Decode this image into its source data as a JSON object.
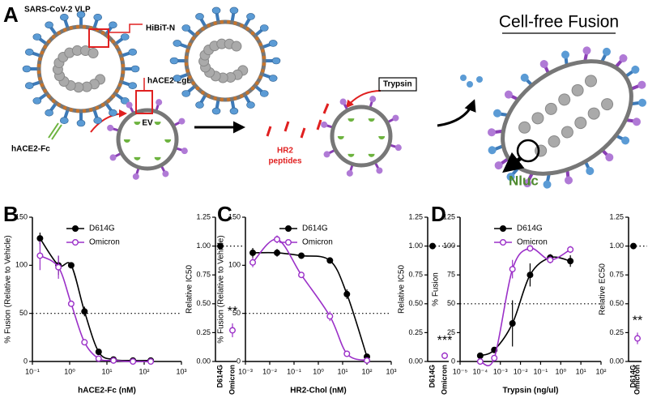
{
  "panel_labels": [
    "A",
    "B",
    "C",
    "D"
  ],
  "schematic": {
    "vlp_label": "SARS-CoV-2 VLP",
    "hibit": "HiBiT-N",
    "lgbit": "hACE2-LgBiT",
    "ev": "EV",
    "fc": "hACE2-Fc",
    "trypsin": "Trypsin",
    "hr2": [
      "HR2",
      "peptides"
    ],
    "title": "Cell-free Fusion",
    "nluc": "Nluc"
  },
  "chart_data": [
    {
      "type": "line",
      "x_label": "hACE2-Fc (nM)",
      "y_label": "% Fusion (Relative to Vehicle)",
      "xscale": "log",
      "xlim": [
        0.1,
        1000
      ],
      "xticks": [
        {
          "value": 0.1,
          "label": "10⁻¹"
        },
        {
          "value": 1,
          "label": "10⁰"
        },
        {
          "value": 10,
          "label": "10¹"
        },
        {
          "value": 100,
          "label": "10²"
        },
        {
          "value": 1000,
          "label": "10³"
        }
      ],
      "ylim": [
        0,
        150
      ],
      "yticks": [
        0,
        50,
        100,
        150
      ],
      "hline": 50,
      "x": [
        0.16,
        0.5,
        1.1,
        2.5,
        6,
        15,
        50,
        150
      ],
      "series": [
        {
          "name": "D614G",
          "color": "#000000",
          "values": [
            128,
            100,
            100,
            52,
            10,
            2,
            1,
            1
          ],
          "errors": [
            6,
            10,
            3,
            5,
            2,
            1,
            0,
            0
          ]
        },
        {
          "name": "Omicron",
          "color": "#9b30c8",
          "values": [
            110,
            98,
            60,
            20,
            3,
            1,
            0,
            0
          ],
          "errors": [
            15,
            12,
            3,
            2,
            1,
            0,
            0,
            0
          ]
        }
      ]
    },
    {
      "type": "dot",
      "y_label": "Relative IC50",
      "categories": [
        "D614G",
        "Omicron"
      ],
      "values": [
        1.0,
        0.27
      ],
      "errors": [
        0,
        0.06
      ],
      "colors": [
        "#000000",
        "#9b30c8"
      ],
      "ylim": [
        0,
        1.25
      ],
      "yticks": [
        {
          "value": 0,
          "label": "0.00"
        },
        0.25,
        {
          "value": 0.5,
          "label": "0.50"
        },
        0.75,
        {
          "value": 1,
          "label": "1.00"
        },
        1.25
      ],
      "hline": 1,
      "annotation": "**"
    },
    {
      "type": "line",
      "x_label": "HR2-Chol (nM)",
      "y_label": "% Fusion (Relative to Vehicle)",
      "xscale": "log",
      "xlim": [
        0.001,
        1000
      ],
      "xticks": [
        {
          "value": 0.001,
          "label": "10⁻³"
        },
        {
          "value": 0.01,
          "label": "10⁻²"
        },
        {
          "value": 0.1,
          "label": "10⁻¹"
        },
        {
          "value": 1,
          "label": "10⁰"
        },
        {
          "value": 10,
          "label": "10¹"
        },
        {
          "value": 100,
          "label": "10²"
        },
        {
          "value": 1000,
          "label": "10³"
        }
      ],
      "ylim": [
        0,
        150
      ],
      "yticks": [
        0,
        50,
        100,
        150
      ],
      "hline": 50,
      "x": [
        0.002,
        0.02,
        0.2,
        3,
        15,
        100
      ],
      "series": [
        {
          "name": "D614G",
          "color": "#000000",
          "values": [
            113,
            113,
            110,
            105,
            70,
            5
          ],
          "errors": [
            5,
            4,
            3,
            2,
            5,
            1
          ]
        },
        {
          "name": "Omicron",
          "color": "#9b30c8",
          "values": [
            103,
            127,
            90,
            47,
            8,
            1
          ],
          "errors": [
            5,
            4,
            2,
            5,
            2,
            0
          ]
        }
      ]
    },
    {
      "type": "dot",
      "y_label": "Relative IC50",
      "categories": [
        "D614G",
        "Omicron"
      ],
      "values": [
        1.0,
        0.05
      ],
      "errors": [
        0,
        0.03
      ],
      "colors": [
        "#000000",
        "#9b30c8"
      ],
      "ylim": [
        0,
        1.25
      ],
      "yticks": [
        {
          "value": 0,
          "label": "0.00"
        },
        0.25,
        {
          "value": 0.5,
          "label": "0.50"
        },
        0.75,
        {
          "value": 1,
          "label": "1.00"
        },
        1.25
      ],
      "hline": 1,
      "annotation": "***"
    },
    {
      "type": "line",
      "x_label": "Trypsin (ng/ul)",
      "y_label": "% Fusion",
      "xscale": "log",
      "xlim": [
        1e-05,
        100
      ],
      "xticks": [
        {
          "value": 1e-05,
          "label": "10⁻⁵"
        },
        {
          "value": 0.0001,
          "label": "10⁻⁴"
        },
        {
          "value": 0.001,
          "label": "10⁻³"
        },
        {
          "value": 0.01,
          "label": "10⁻²"
        },
        {
          "value": 0.1,
          "label": "10⁻¹"
        },
        {
          "value": 1,
          "label": "10⁰"
        },
        {
          "value": 10,
          "label": "10¹"
        },
        {
          "value": 100,
          "label": "10²"
        }
      ],
      "ylim": [
        0,
        125
      ],
      "yticks": [
        0,
        25,
        50,
        75,
        100,
        125
      ],
      "hline": 50,
      "x": [
        0.0001,
        0.0005,
        0.004,
        0.03,
        0.3,
        3
      ],
      "series": [
        {
          "name": "D614G",
          "color": "#000000",
          "values": [
            5,
            10,
            33,
            75,
            90,
            87
          ],
          "errors": [
            1,
            2,
            20,
            10,
            3,
            5
          ]
        },
        {
          "name": "Omicron",
          "color": "#9b30c8",
          "values": [
            0,
            3,
            80,
            98,
            88,
            97
          ],
          "errors": [
            0,
            1,
            8,
            2,
            3,
            3
          ]
        }
      ]
    },
    {
      "type": "dot",
      "y_label": "Relative EC50",
      "categories": [
        "D614G",
        "Omicron"
      ],
      "values": [
        1.0,
        0.2
      ],
      "errors": [
        0,
        0.05
      ],
      "colors": [
        "#000000",
        "#9b30c8"
      ],
      "ylim": [
        0,
        1.25
      ],
      "yticks": [
        {
          "value": 0,
          "label": "0.00"
        },
        0.25,
        {
          "value": 0.5,
          "label": "0.50"
        },
        0.75,
        {
          "value": 1,
          "label": "1.00"
        },
        1.25
      ],
      "hline": 1,
      "annotation": "**"
    }
  ]
}
